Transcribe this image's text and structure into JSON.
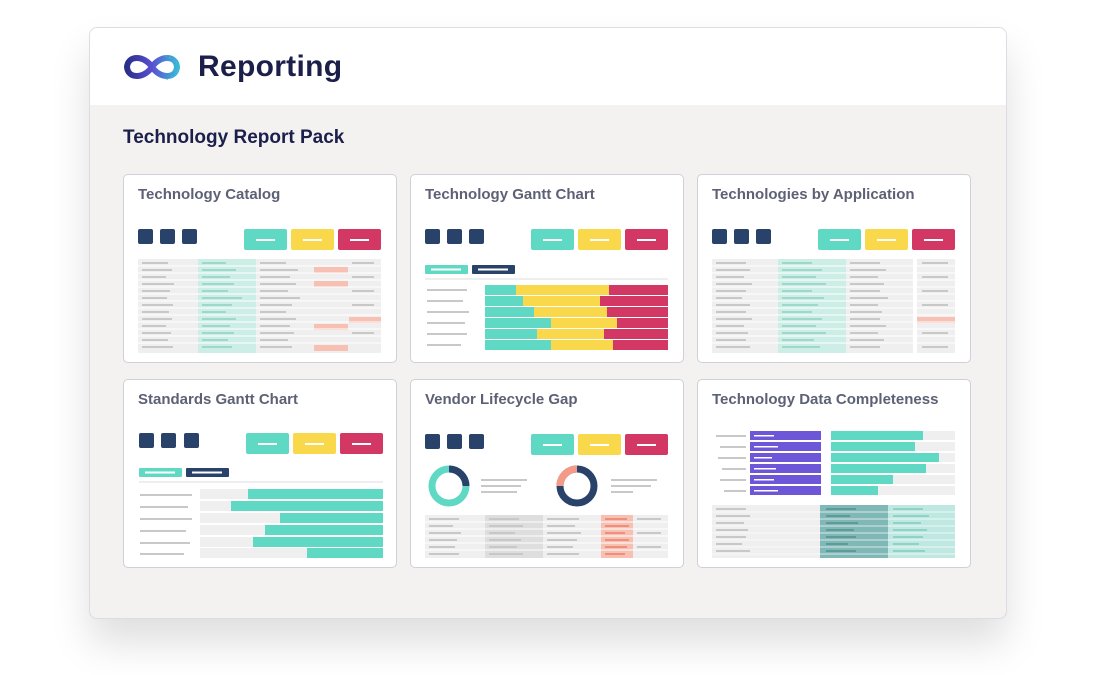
{
  "app": {
    "title": "Reporting",
    "logo_icon": "infinity-logo-icon"
  },
  "page": {
    "title": "Technology Report Pack"
  },
  "colors": {
    "navy": "#28426a",
    "teal": "#5fd9c3",
    "yellow": "#f9d94b",
    "red": "#d33763",
    "purple": "#6e56d8",
    "salmon": "#f59a86"
  },
  "reports": [
    {
      "title": "Technology Catalog",
      "thumbnail": "table-preview"
    },
    {
      "title": "Technology Gantt Chart",
      "thumbnail": "gantt-preview"
    },
    {
      "title": "Technologies by Application",
      "thumbnail": "table-preview"
    },
    {
      "title": "Standards Gantt Chart",
      "thumbnail": "bar-preview"
    },
    {
      "title": "Vendor Lifecycle Gap",
      "thumbnail": "donut-preview"
    },
    {
      "title": "Technology Data Completeness",
      "thumbnail": "completeness-preview"
    }
  ]
}
